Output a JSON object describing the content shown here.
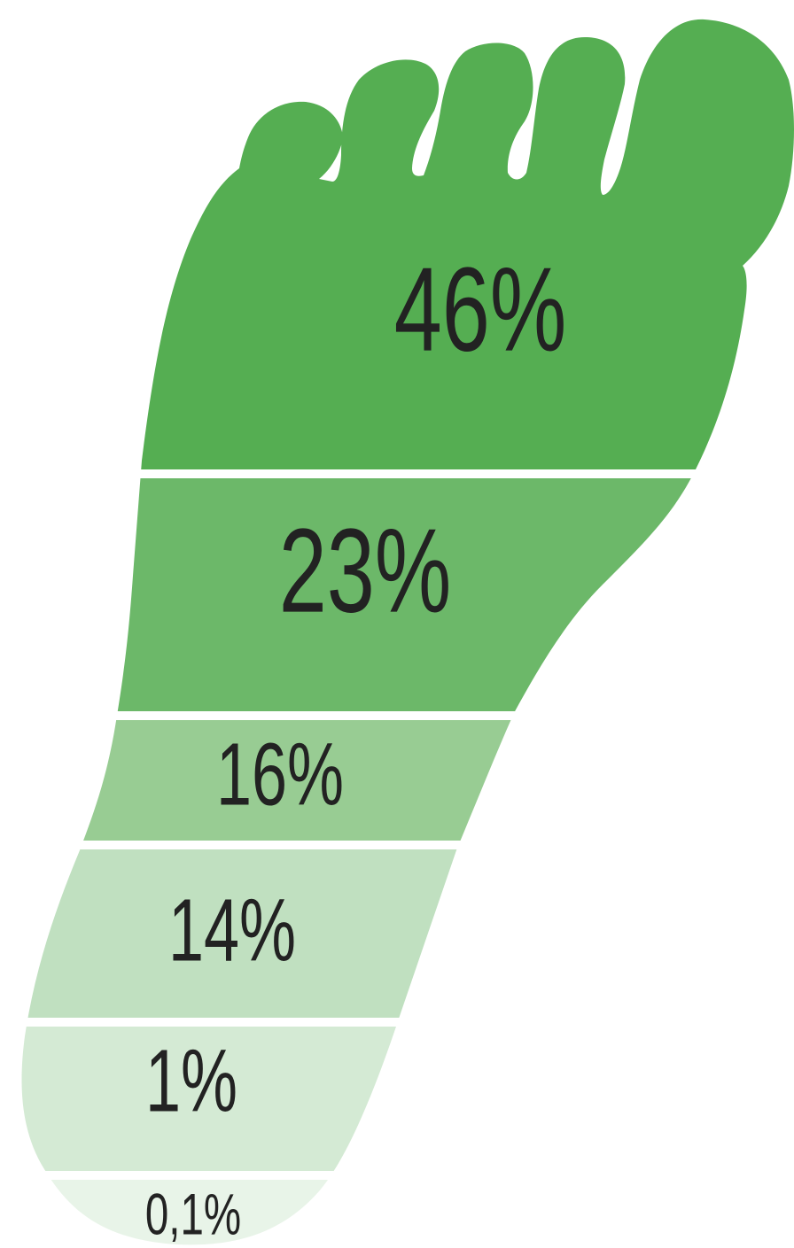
{
  "chart_data": {
    "type": "footprint",
    "values": [
      46,
      23,
      16,
      14,
      1,
      0.1
    ],
    "value_labels": [
      "46%",
      "23%",
      "16%",
      "14%",
      "1%",
      "0,1%"
    ],
    "colors": [
      "#55ae52",
      "#6cb869",
      "#98cc93",
      "#c0e0c0",
      "#d4ead4",
      "#e8f4e8"
    ]
  }
}
